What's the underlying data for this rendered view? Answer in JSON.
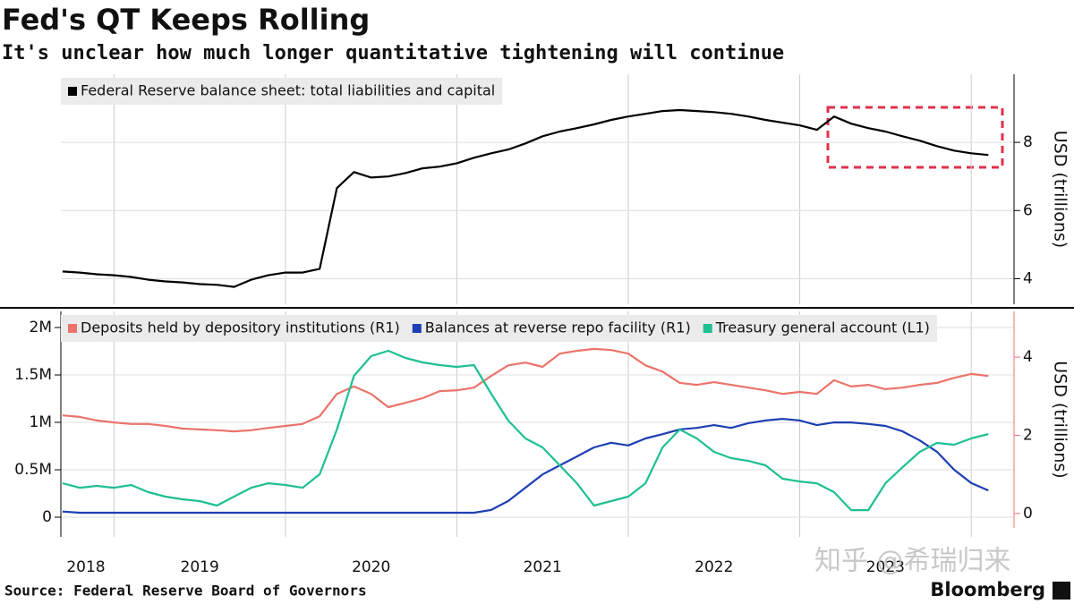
{
  "title": "Fed's QT Keeps Rolling",
  "subtitle": "It's unclear how much longer quantitative tightening will continue",
  "source": "Source: Federal Reserve Board of Governors",
  "brand": "Bloomberg",
  "watermark": "知乎 @希瑞归来",
  "chart_data": [
    {
      "type": "line",
      "x": [
        2018.7,
        2018.8,
        2018.9,
        2019.0,
        2019.1,
        2019.2,
        2019.3,
        2019.4,
        2019.5,
        2019.6,
        2019.7,
        2019.8,
        2019.9,
        2020.0,
        2020.1,
        2020.2,
        2020.3,
        2020.4,
        2020.5,
        2020.6,
        2020.7,
        2020.8,
        2020.9,
        2021.0,
        2021.1,
        2021.2,
        2021.3,
        2021.4,
        2021.5,
        2021.6,
        2021.7,
        2021.8,
        2021.9,
        2022.0,
        2022.1,
        2022.2,
        2022.3,
        2022.4,
        2022.5,
        2022.6,
        2022.7,
        2022.8,
        2022.9,
        2023.0,
        2023.1,
        2023.2,
        2023.3,
        2023.4,
        2023.5,
        2023.6,
        2023.7,
        2023.8,
        2023.9,
        2024.0,
        2024.1
      ],
      "series": [
        {
          "name": "Federal Reserve balance sheet: total liabilities and capital",
          "color": "#000000",
          "values": [
            4.21,
            4.18,
            4.13,
            4.1,
            4.05,
            3.97,
            3.92,
            3.89,
            3.84,
            3.82,
            3.76,
            3.97,
            4.1,
            4.18,
            4.18,
            4.29,
            6.66,
            7.13,
            6.97,
            7.0,
            7.1,
            7.24,
            7.29,
            7.39,
            7.55,
            7.68,
            7.79,
            7.97,
            8.18,
            8.32,
            8.42,
            8.53,
            8.66,
            8.76,
            8.84,
            8.92,
            8.95,
            8.92,
            8.89,
            8.84,
            8.76,
            8.66,
            8.58,
            8.5,
            8.37,
            8.76,
            8.55,
            8.42,
            8.32,
            8.18,
            8.05,
            7.89,
            7.76,
            7.68,
            7.63
          ]
        }
      ],
      "xlim": [
        2018.69,
        2024.25
      ],
      "xgrid": [
        2019,
        2020,
        2021,
        2022,
        2023,
        2024
      ],
      "ylim": [
        3.25,
        10
      ],
      "yticks": [
        4,
        6,
        8
      ],
      "y_label": "USD (trillions)"
    },
    {
      "type": "line",
      "x": [
        2018.7,
        2018.8,
        2018.9,
        2019.0,
        2019.1,
        2019.2,
        2019.3,
        2019.4,
        2019.5,
        2019.6,
        2019.7,
        2019.8,
        2019.9,
        2020.0,
        2020.1,
        2020.2,
        2020.3,
        2020.4,
        2020.5,
        2020.6,
        2020.7,
        2020.8,
        2020.9,
        2021.0,
        2021.1,
        2021.2,
        2021.3,
        2021.4,
        2021.5,
        2021.6,
        2021.7,
        2021.8,
        2021.9,
        2022.0,
        2022.1,
        2022.2,
        2022.3,
        2022.4,
        2022.5,
        2022.6,
        2022.7,
        2022.8,
        2022.9,
        2023.0,
        2023.1,
        2023.2,
        2023.3,
        2023.4,
        2023.5,
        2023.6,
        2023.7,
        2023.8,
        2023.9,
        2024.0,
        2024.1
      ],
      "series": [
        {
          "name": "Deposits held by depository institutions (R1)",
          "color": "#ec736b",
          "axis": "y2",
          "values": [
            2.51,
            2.47,
            2.38,
            2.33,
            2.29,
            2.29,
            2.24,
            2.17,
            2.15,
            2.13,
            2.1,
            2.13,
            2.19,
            2.24,
            2.29,
            2.49,
            3.06,
            3.25,
            3.06,
            2.72,
            2.83,
            2.95,
            3.13,
            3.15,
            3.22,
            3.52,
            3.79,
            3.86,
            3.75,
            4.09,
            4.16,
            4.21,
            4.18,
            4.09,
            3.79,
            3.63,
            3.34,
            3.29,
            3.36,
            3.29,
            3.22,
            3.15,
            3.06,
            3.11,
            3.06,
            3.41,
            3.25,
            3.29,
            3.18,
            3.22,
            3.29,
            3.34,
            3.47,
            3.57,
            3.52
          ]
        },
        {
          "name": "Balances at reverse repo facility (R1)",
          "color": "#1c3fb3",
          "axis": "y2",
          "values": [
            0.05,
            0.02,
            0.02,
            0.02,
            0.02,
            0.02,
            0.02,
            0.02,
            0.02,
            0.02,
            0.02,
            0.02,
            0.02,
            0.02,
            0.02,
            0.02,
            0.02,
            0.02,
            0.02,
            0.02,
            0.02,
            0.02,
            0.02,
            0.02,
            0.02,
            0.09,
            0.32,
            0.66,
            1.0,
            1.23,
            1.46,
            1.69,
            1.81,
            1.74,
            1.92,
            2.03,
            2.15,
            2.19,
            2.26,
            2.19,
            2.31,
            2.38,
            2.42,
            2.38,
            2.26,
            2.33,
            2.33,
            2.29,
            2.24,
            2.1,
            1.87,
            1.58,
            1.12,
            0.78,
            0.59
          ]
        },
        {
          "name": "Treasury general account  (L1)",
          "color": "#1fbf93",
          "axis": "y",
          "values": [
            358000,
            311000,
            330000,
            311000,
            340000,
            264000,
            217000,
            189000,
            170000,
            123000,
            217000,
            311000,
            358000,
            340000,
            311000,
            453000,
            925000,
            1491000,
            1698000,
            1755000,
            1679000,
            1632000,
            1604000,
            1585000,
            1604000,
            1302000,
            1019000,
            830000,
            736000,
            547000,
            358000,
            123000,
            170000,
            217000,
            358000,
            736000,
            925000,
            830000,
            689000,
            623000,
            594000,
            547000,
            406000,
            377000,
            358000,
            264000,
            75000,
            75000,
            358000,
            528000,
            689000,
            783000,
            764000,
            830000,
            877000
          ]
        }
      ],
      "xlim": [
        2018.69,
        2024.25
      ],
      "xticks": [
        2018,
        2019,
        2020,
        2021,
        2022,
        2023
      ],
      "xgrid": [
        2019,
        2020,
        2021,
        2022,
        2023,
        2024
      ],
      "ylim": [
        -113000,
        2170000
      ],
      "yticks": [
        0,
        {
          "value": 500000,
          "label": "0.5M"
        },
        {
          "value": 1000000,
          "label": "1M"
        },
        {
          "value": 1500000,
          "label": "1.5M"
        },
        {
          "value": 2000000,
          "label": "2M"
        }
      ],
      "y2lim": [
        -0.37,
        5.17
      ],
      "y2ticks": [
        0,
        2,
        4
      ],
      "y2_label": "USD (trillions)"
    }
  ]
}
